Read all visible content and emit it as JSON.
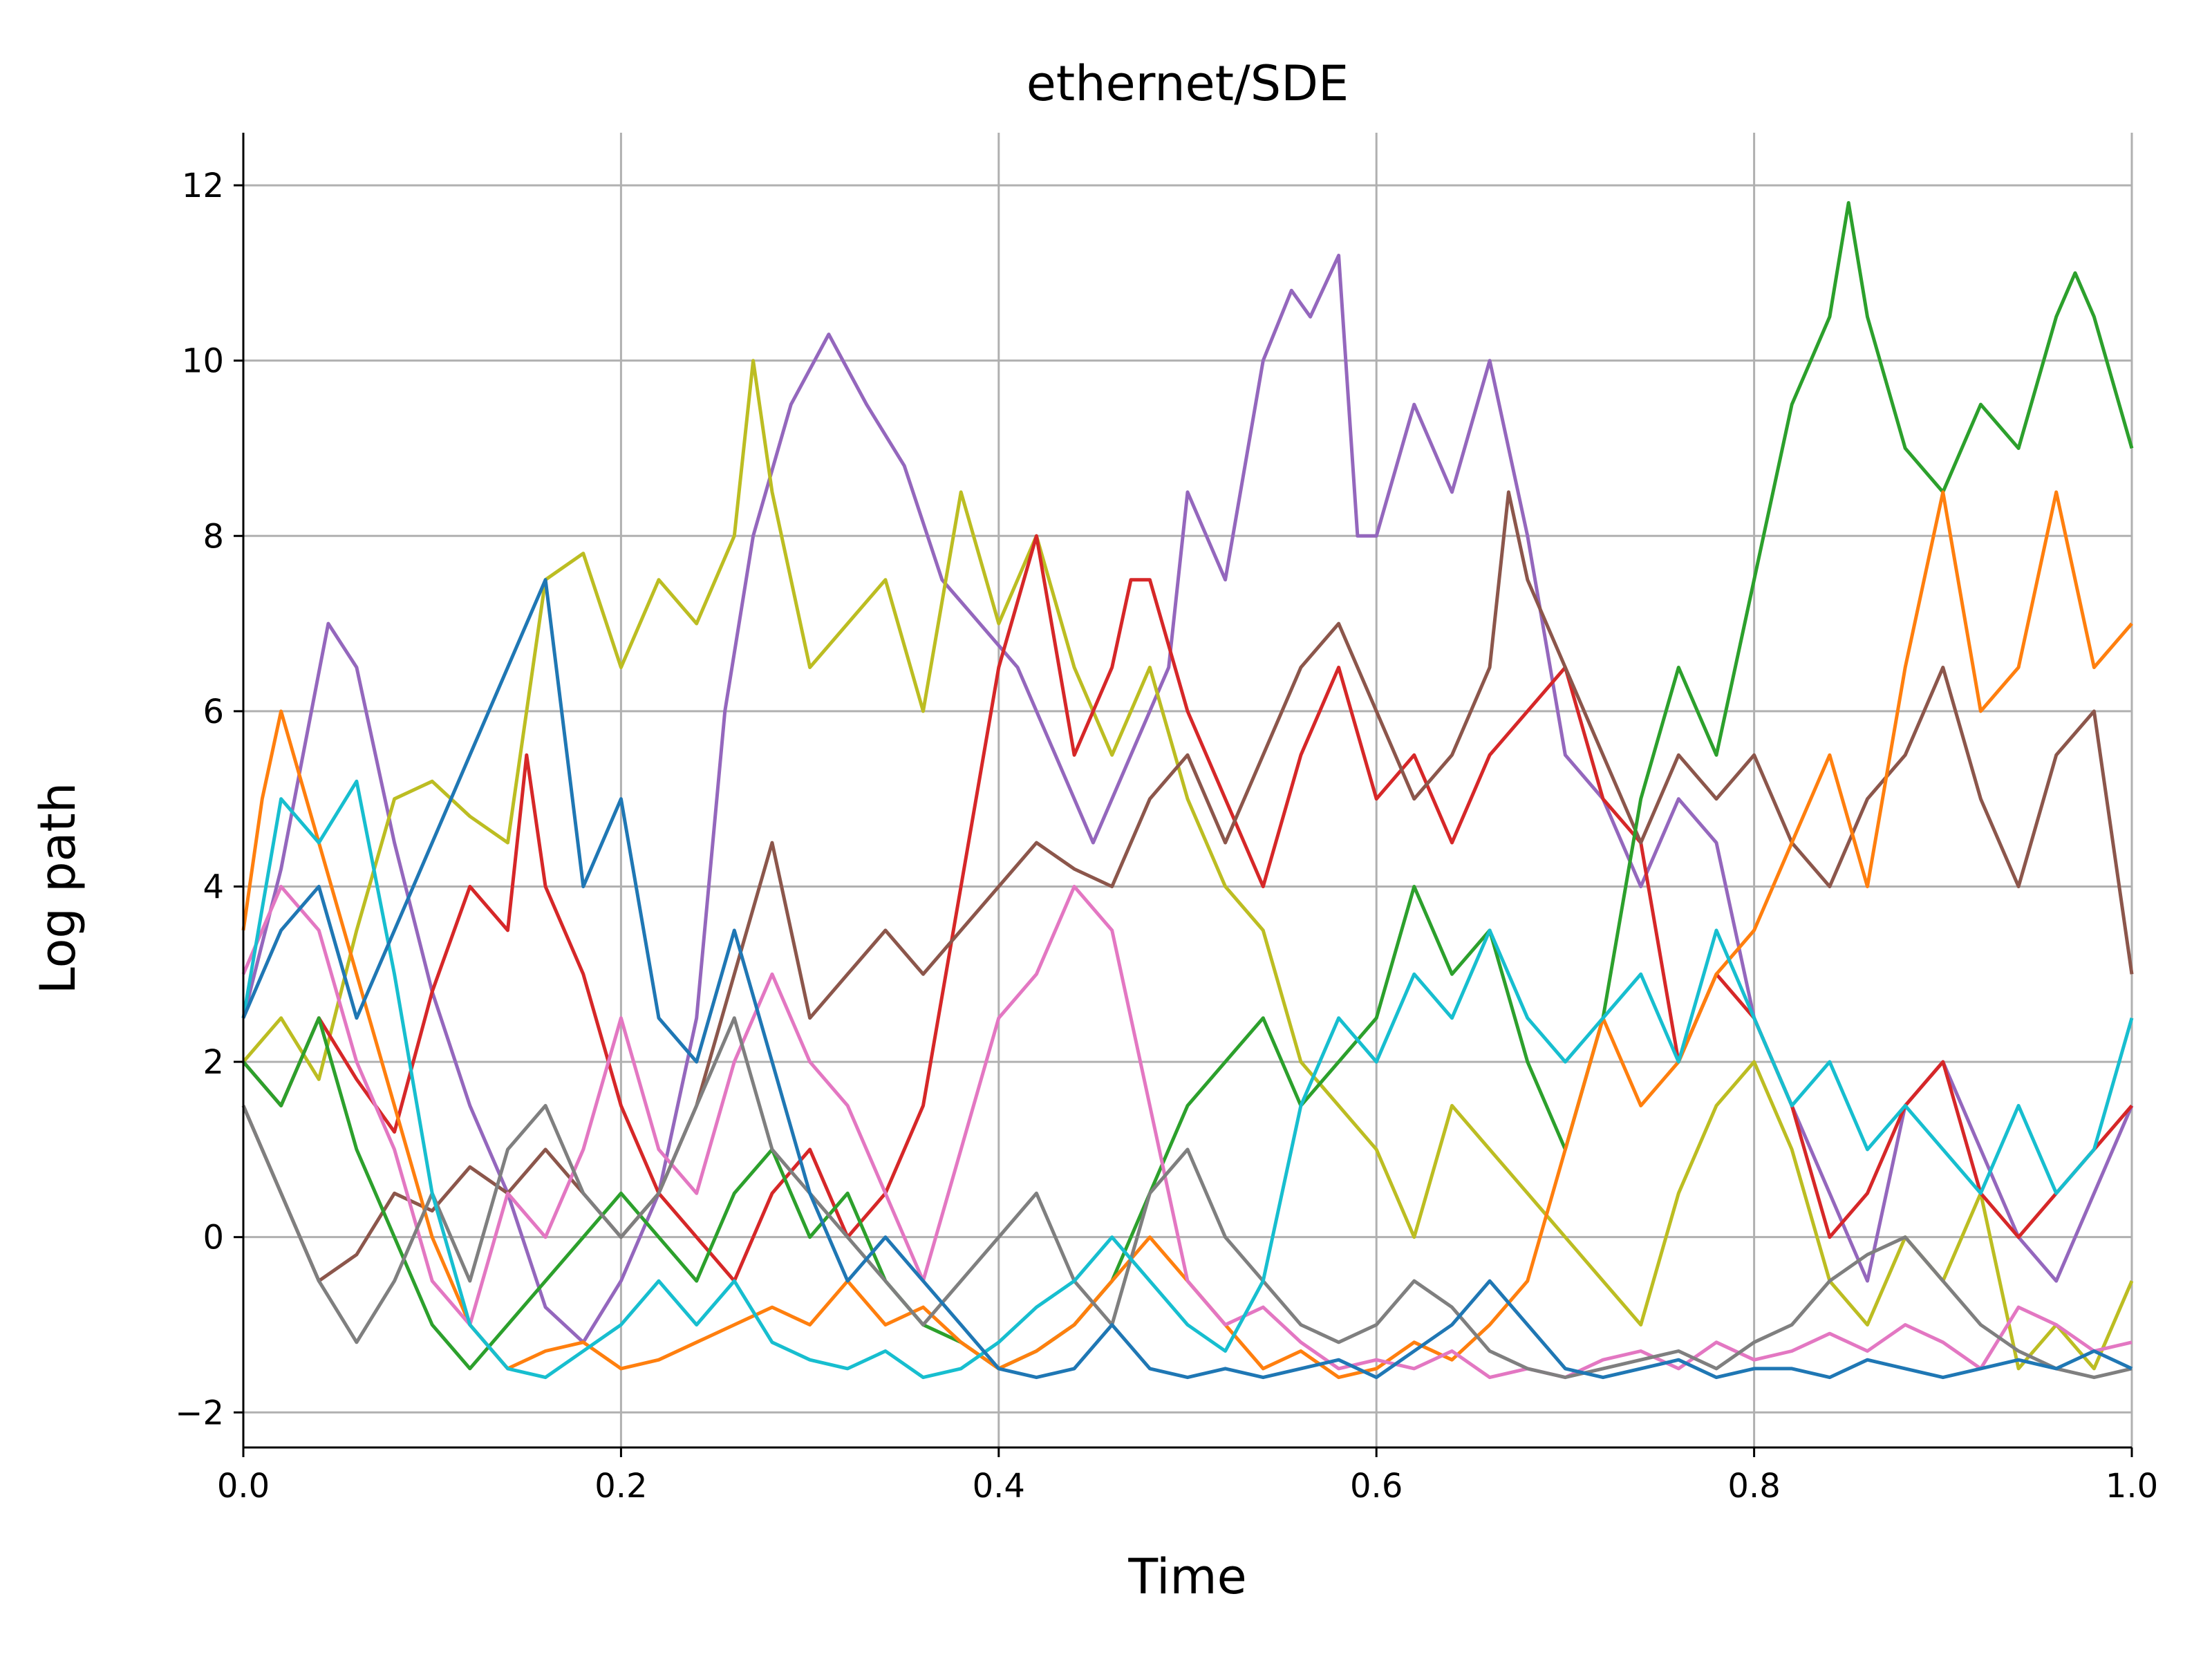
{
  "chart_data": {
    "type": "line",
    "title": "ethernet/SDE",
    "xlabel": "Time",
    "ylabel": "Log path",
    "xlim": [
      0.0,
      1.0
    ],
    "ylim": [
      -2.4,
      12.6
    ],
    "grid": true,
    "xticks": [
      0.0,
      0.2,
      0.4,
      0.6,
      0.8,
      1.0
    ],
    "xtick_labels": [
      "0.0",
      "0.2",
      "0.4",
      "0.6",
      "0.8",
      "1.0"
    ],
    "yticks": [
      -2,
      0,
      2,
      4,
      6,
      8,
      10,
      12
    ],
    "ytick_labels": [
      "−2",
      "0",
      "2",
      "4",
      "6",
      "8",
      "10",
      "12"
    ],
    "series": [
      {
        "color": "#9467bd",
        "x": [
          0,
          0.02,
          0.045,
          0.06,
          0.08,
          0.1,
          0.12,
          0.14,
          0.16,
          0.18,
          0.2,
          0.22,
          0.24,
          0.255,
          0.27,
          0.29,
          0.31,
          0.33,
          0.35,
          0.37,
          0.39,
          0.41,
          0.43,
          0.45,
          0.47,
          0.49,
          0.5,
          0.52,
          0.54,
          0.555,
          0.565,
          0.58,
          0.59,
          0.6,
          0.62,
          0.64,
          0.66,
          0.68,
          0.7,
          0.72,
          0.74,
          0.76,
          0.78,
          0.8,
          0.82,
          0.84,
          0.86,
          0.88,
          0.9,
          0.92,
          0.94,
          0.96,
          0.98,
          1.0
        ],
        "y": [
          2.5,
          4.2,
          7.0,
          6.5,
          4.5,
          2.8,
          1.5,
          0.5,
          -0.8,
          -1.2,
          -0.5,
          0.5,
          2.5,
          6.0,
          8.0,
          9.5,
          10.3,
          9.5,
          8.8,
          7.5,
          7.0,
          6.5,
          5.5,
          4.5,
          5.5,
          6.5,
          8.5,
          7.5,
          10.0,
          10.8,
          10.5,
          11.2,
          8.0,
          8.0,
          9.5,
          8.5,
          10.0,
          8.0,
          5.5,
          5.0,
          4.0,
          5.0,
          4.5,
          2.5,
          1.5,
          0.5,
          -0.5,
          1.5,
          2.0,
          1.0,
          0.0,
          -0.5,
          0.5,
          1.5
        ]
      },
      {
        "color": "#bcbd22",
        "x": [
          0,
          0.02,
          0.04,
          0.06,
          0.08,
          0.1,
          0.12,
          0.14,
          0.16,
          0.18,
          0.2,
          0.22,
          0.24,
          0.26,
          0.27,
          0.28,
          0.3,
          0.32,
          0.34,
          0.36,
          0.38,
          0.4,
          0.42,
          0.44,
          0.46,
          0.48,
          0.5,
          0.52,
          0.54,
          0.56,
          0.58,
          0.6,
          0.62,
          0.64,
          0.66,
          0.68,
          0.7,
          0.72,
          0.74,
          0.76,
          0.78,
          0.8,
          0.82,
          0.84,
          0.86,
          0.88,
          0.9,
          0.92,
          0.94,
          0.96,
          0.98,
          1.0
        ],
        "y": [
          2.0,
          2.5,
          1.8,
          3.5,
          5.0,
          5.2,
          4.8,
          4.5,
          7.5,
          7.8,
          6.5,
          7.5,
          7.0,
          8.0,
          10.0,
          8.5,
          6.5,
          7.0,
          7.5,
          6.0,
          8.5,
          7.0,
          8.0,
          6.5,
          5.5,
          6.5,
          5.0,
          4.0,
          3.5,
          2.0,
          1.5,
          1.0,
          0.0,
          1.5,
          1.0,
          0.5,
          0.0,
          -0.5,
          -1.0,
          0.5,
          1.5,
          2.0,
          1.0,
          -0.5,
          -1.0,
          0.0,
          -0.5,
          0.5,
          -1.5,
          -1.0,
          -1.5,
          -0.5
        ]
      },
      {
        "color": "#d62728",
        "x": [
          0,
          0.02,
          0.04,
          0.06,
          0.08,
          0.1,
          0.12,
          0.14,
          0.15,
          0.16,
          0.18,
          0.2,
          0.22,
          0.24,
          0.26,
          0.28,
          0.3,
          0.32,
          0.34,
          0.36,
          0.38,
          0.4,
          0.42,
          0.44,
          0.46,
          0.47,
          0.48,
          0.5,
          0.52,
          0.54,
          0.56,
          0.58,
          0.6,
          0.62,
          0.64,
          0.66,
          0.68,
          0.7,
          0.72,
          0.74,
          0.76,
          0.78,
          0.8,
          0.82,
          0.84,
          0.86,
          0.88,
          0.9,
          0.92,
          0.94,
          0.96,
          0.98,
          1.0
        ],
        "y": [
          2.0,
          1.5,
          2.5,
          1.8,
          1.2,
          2.8,
          4.0,
          3.5,
          5.5,
          4.0,
          3.0,
          1.5,
          0.5,
          0.0,
          -0.5,
          0.5,
          1.0,
          0.0,
          0.5,
          1.5,
          4.0,
          6.5,
          8.0,
          5.5,
          6.5,
          7.5,
          7.5,
          6.0,
          5.0,
          4.0,
          5.5,
          6.5,
          5.0,
          5.5,
          4.5,
          5.5,
          6.0,
          6.5,
          5.0,
          4.5,
          2.0,
          3.0,
          2.5,
          1.5,
          0.0,
          0.5,
          1.5,
          2.0,
          0.5,
          0.0,
          0.5,
          1.0,
          1.5
        ]
      },
      {
        "color": "#8c564b",
        "x": [
          0,
          0.02,
          0.04,
          0.06,
          0.08,
          0.1,
          0.12,
          0.14,
          0.16,
          0.18,
          0.2,
          0.22,
          0.24,
          0.26,
          0.28,
          0.3,
          0.32,
          0.34,
          0.36,
          0.38,
          0.4,
          0.42,
          0.44,
          0.46,
          0.48,
          0.5,
          0.52,
          0.54,
          0.56,
          0.58,
          0.6,
          0.62,
          0.64,
          0.66,
          0.67,
          0.68,
          0.7,
          0.72,
          0.74,
          0.76,
          0.78,
          0.8,
          0.82,
          0.84,
          0.86,
          0.88,
          0.9,
          0.92,
          0.94,
          0.96,
          0.98,
          1.0
        ],
        "y": [
          1.5,
          0.5,
          -0.5,
          -0.2,
          0.5,
          0.3,
          0.8,
          0.5,
          1.0,
          0.5,
          0.0,
          0.5,
          1.5,
          3.0,
          4.5,
          2.5,
          3.0,
          3.5,
          3.0,
          3.5,
          4.0,
          4.5,
          4.2,
          4.0,
          5.0,
          5.5,
          4.5,
          5.5,
          6.5,
          7.0,
          6.0,
          5.0,
          5.5,
          6.5,
          8.5,
          7.5,
          6.5,
          5.5,
          4.5,
          5.5,
          5.0,
          5.5,
          4.5,
          4.0,
          5.0,
          5.5,
          6.5,
          5.0,
          4.0,
          5.5,
          6.0,
          3.0
        ]
      },
      {
        "color": "#2ca02c",
        "x": [
          0,
          0.02,
          0.04,
          0.06,
          0.08,
          0.1,
          0.12,
          0.14,
          0.16,
          0.18,
          0.2,
          0.22,
          0.24,
          0.26,
          0.28,
          0.3,
          0.32,
          0.34,
          0.36,
          0.38,
          0.4,
          0.42,
          0.44,
          0.46,
          0.48,
          0.5,
          0.52,
          0.54,
          0.56,
          0.58,
          0.6,
          0.62,
          0.64,
          0.66,
          0.68,
          0.7,
          0.72,
          0.74,
          0.76,
          0.78,
          0.8,
          0.82,
          0.84,
          0.85,
          0.86,
          0.88,
          0.9,
          0.92,
          0.94,
          0.96,
          0.97,
          0.98,
          1.0
        ],
        "y": [
          2.0,
          1.5,
          2.5,
          1.0,
          0.0,
          -1.0,
          -1.5,
          -1.0,
          -0.5,
          0.0,
          0.5,
          0.0,
          -0.5,
          0.5,
          1.0,
          0.0,
          0.5,
          -0.5,
          -1.0,
          -1.2,
          -1.5,
          -1.3,
          -1.0,
          -0.5,
          0.5,
          1.5,
          2.0,
          2.5,
          1.5,
          2.0,
          2.5,
          4.0,
          3.0,
          3.5,
          2.0,
          1.0,
          2.5,
          5.0,
          6.5,
          5.5,
          7.5,
          9.5,
          10.5,
          11.8,
          10.5,
          9.0,
          8.5,
          9.5,
          9.0,
          10.5,
          11.0,
          10.5,
          9.0
        ]
      },
      {
        "color": "#ff7f0e",
        "x": [
          0,
          0.01,
          0.02,
          0.04,
          0.06,
          0.08,
          0.1,
          0.12,
          0.14,
          0.16,
          0.18,
          0.2,
          0.22,
          0.24,
          0.26,
          0.28,
          0.3,
          0.32,
          0.34,
          0.36,
          0.38,
          0.4,
          0.42,
          0.44,
          0.46,
          0.48,
          0.5,
          0.52,
          0.54,
          0.56,
          0.58,
          0.6,
          0.62,
          0.64,
          0.66,
          0.68,
          0.7,
          0.72,
          0.74,
          0.76,
          0.78,
          0.8,
          0.82,
          0.84,
          0.86,
          0.88,
          0.9,
          0.92,
          0.94,
          0.96,
          0.98,
          1.0
        ],
        "y": [
          3.5,
          5.0,
          6.0,
          4.5,
          3.0,
          1.5,
          0.0,
          -1.0,
          -1.5,
          -1.3,
          -1.2,
          -1.5,
          -1.4,
          -1.2,
          -1.0,
          -0.8,
          -1.0,
          -0.5,
          -1.0,
          -0.8,
          -1.2,
          -1.5,
          -1.3,
          -1.0,
          -0.5,
          0.0,
          -0.5,
          -1.0,
          -1.5,
          -1.3,
          -1.6,
          -1.5,
          -1.2,
          -1.4,
          -1.0,
          -0.5,
          1.0,
          2.5,
          1.5,
          2.0,
          3.0,
          3.5,
          4.5,
          5.5,
          4.0,
          6.5,
          8.5,
          6.0,
          6.5,
          8.5,
          6.5,
          7.0
        ]
      },
      {
        "color": "#e377c2",
        "x": [
          0,
          0.02,
          0.04,
          0.06,
          0.08,
          0.1,
          0.12,
          0.14,
          0.16,
          0.18,
          0.2,
          0.22,
          0.24,
          0.26,
          0.28,
          0.3,
          0.32,
          0.34,
          0.36,
          0.38,
          0.4,
          0.42,
          0.44,
          0.46,
          0.48,
          0.5,
          0.52,
          0.54,
          0.56,
          0.58,
          0.6,
          0.62,
          0.64,
          0.66,
          0.68,
          0.7,
          0.72,
          0.74,
          0.76,
          0.78,
          0.8,
          0.82,
          0.84,
          0.86,
          0.88,
          0.9,
          0.92,
          0.94,
          0.96,
          0.98,
          1.0
        ],
        "y": [
          3.0,
          4.0,
          3.5,
          2.0,
          1.0,
          -0.5,
          -1.0,
          0.5,
          0.0,
          1.0,
          2.5,
          1.0,
          0.5,
          2.0,
          3.0,
          2.0,
          1.5,
          0.5,
          -0.5,
          1.0,
          2.5,
          3.0,
          4.0,
          3.5,
          1.5,
          -0.5,
          -1.0,
          -0.8,
          -1.2,
          -1.5,
          -1.4,
          -1.5,
          -1.3,
          -1.6,
          -1.5,
          -1.6,
          -1.4,
          -1.3,
          -1.5,
          -1.2,
          -1.4,
          -1.3,
          -1.1,
          -1.3,
          -1.0,
          -1.2,
          -1.5,
          -0.8,
          -1.0,
          -1.3,
          -1.2
        ]
      },
      {
        "color": "#7f7f7f",
        "x": [
          0,
          0.02,
          0.04,
          0.06,
          0.08,
          0.1,
          0.12,
          0.14,
          0.16,
          0.18,
          0.2,
          0.22,
          0.24,
          0.26,
          0.28,
          0.3,
          0.32,
          0.34,
          0.36,
          0.38,
          0.4,
          0.42,
          0.44,
          0.46,
          0.48,
          0.5,
          0.52,
          0.54,
          0.56,
          0.58,
          0.6,
          0.62,
          0.64,
          0.66,
          0.68,
          0.7,
          0.72,
          0.74,
          0.76,
          0.78,
          0.8,
          0.82,
          0.84,
          0.86,
          0.88,
          0.9,
          0.92,
          0.94,
          0.96,
          0.98,
          1.0
        ],
        "y": [
          1.5,
          0.5,
          -0.5,
          -1.2,
          -0.5,
          0.5,
          -0.5,
          1.0,
          1.5,
          0.5,
          0.0,
          0.5,
          1.5,
          2.5,
          1.0,
          0.5,
          0.0,
          -0.5,
          -1.0,
          -0.5,
          0.0,
          0.5,
          -0.5,
          -1.0,
          0.5,
          1.0,
          0.0,
          -0.5,
          -1.0,
          -1.2,
          -1.0,
          -0.5,
          -0.8,
          -1.3,
          -1.5,
          -1.6,
          -1.5,
          -1.4,
          -1.3,
          -1.5,
          -1.2,
          -1.0,
          -0.5,
          -0.2,
          0.0,
          -0.5,
          -1.0,
          -1.3,
          -1.5,
          -1.6,
          -1.5
        ]
      },
      {
        "color": "#17becf",
        "x": [
          0,
          0.02,
          0.04,
          0.06,
          0.08,
          0.1,
          0.12,
          0.14,
          0.16,
          0.18,
          0.2,
          0.22,
          0.24,
          0.26,
          0.28,
          0.3,
          0.32,
          0.34,
          0.36,
          0.38,
          0.4,
          0.42,
          0.44,
          0.46,
          0.48,
          0.5,
          0.52,
          0.54,
          0.56,
          0.58,
          0.6,
          0.62,
          0.64,
          0.66,
          0.68,
          0.7,
          0.72,
          0.74,
          0.76,
          0.78,
          0.8,
          0.82,
          0.84,
          0.86,
          0.88,
          0.9,
          0.92,
          0.94,
          0.96,
          0.98,
          1.0
        ],
        "y": [
          2.5,
          5.0,
          4.5,
          5.2,
          3.0,
          0.5,
          -1.0,
          -1.5,
          -1.6,
          -1.3,
          -1.0,
          -0.5,
          -1.0,
          -0.5,
          -1.2,
          -1.4,
          -1.5,
          -1.3,
          -1.6,
          -1.5,
          -1.2,
          -0.8,
          -0.5,
          0.0,
          -0.5,
          -1.0,
          -1.3,
          -0.5,
          1.5,
          2.5,
          2.0,
          3.0,
          2.5,
          3.5,
          2.5,
          2.0,
          2.5,
          3.0,
          2.0,
          3.5,
          2.5,
          1.5,
          2.0,
          1.0,
          1.5,
          1.0,
          0.5,
          1.5,
          0.5,
          1.0,
          2.5
        ]
      },
      {
        "color": "#1f77b4",
        "x": [
          0,
          0.02,
          0.04,
          0.06,
          0.08,
          0.1,
          0.12,
          0.14,
          0.16,
          0.18,
          0.2,
          0.22,
          0.24,
          0.26,
          0.28,
          0.3,
          0.32,
          0.34,
          0.36,
          0.38,
          0.4,
          0.42,
          0.44,
          0.46,
          0.48,
          0.5,
          0.52,
          0.54,
          0.56,
          0.58,
          0.6,
          0.62,
          0.64,
          0.66,
          0.68,
          0.7,
          0.72,
          0.74,
          0.76,
          0.78,
          0.8,
          0.82,
          0.84,
          0.86,
          0.88,
          0.9,
          0.92,
          0.94,
          0.96,
          0.98,
          1.0
        ],
        "y": [
          2.5,
          3.5,
          4.0,
          2.5,
          3.5,
          4.5,
          5.5,
          6.5,
          7.5,
          4.0,
          5.0,
          2.5,
          2.0,
          3.5,
          2.0,
          0.5,
          -0.5,
          0.0,
          -0.5,
          -1.0,
          -1.5,
          -1.6,
          -1.5,
          -1.0,
          -1.5,
          -1.6,
          -1.5,
          -1.6,
          -1.5,
          -1.4,
          -1.6,
          -1.3,
          -1.0,
          -0.5,
          -1.0,
          -1.5,
          -1.6,
          -1.5,
          -1.4,
          -1.6,
          -1.5,
          -1.5,
          -1.6,
          -1.4,
          -1.5,
          -1.6,
          -1.5,
          -1.4,
          -1.5,
          -1.3,
          -1.5
        ]
      }
    ]
  }
}
